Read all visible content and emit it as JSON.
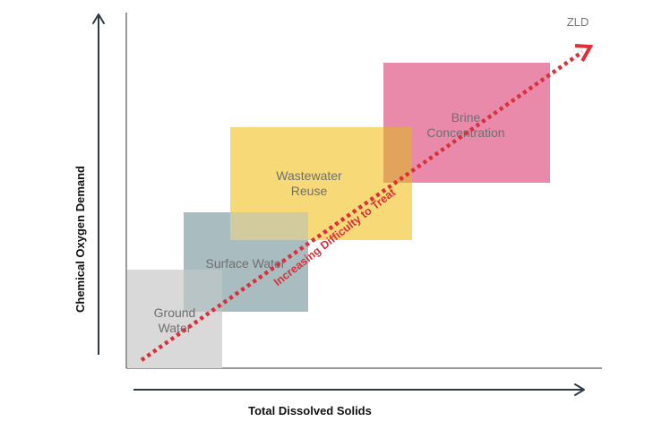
{
  "axes": {
    "y_title": "Chemical Oxygen Demand",
    "x_title": "Total Dissolved Solids"
  },
  "regions": {
    "ground_water": {
      "line1": "Ground",
      "line2": "Water",
      "color": "#d9d9d9"
    },
    "surface_water": {
      "line1": "Surface Water",
      "color": "#a9bcc0"
    },
    "wastewater_reuse": {
      "line1": "Wastewater",
      "line2": "Reuse",
      "color": "#f7d978"
    },
    "brine_concentration": {
      "line1": "Brine",
      "line2": "Concentration",
      "color": "#e98aab"
    }
  },
  "trend": {
    "label": "Increasing Difficulty to Treat",
    "color": "#d9303a"
  },
  "endpoint": {
    "label": "ZLD"
  },
  "colors": {
    "axis": "#2f3b44",
    "overlap": "#e2a45c"
  }
}
